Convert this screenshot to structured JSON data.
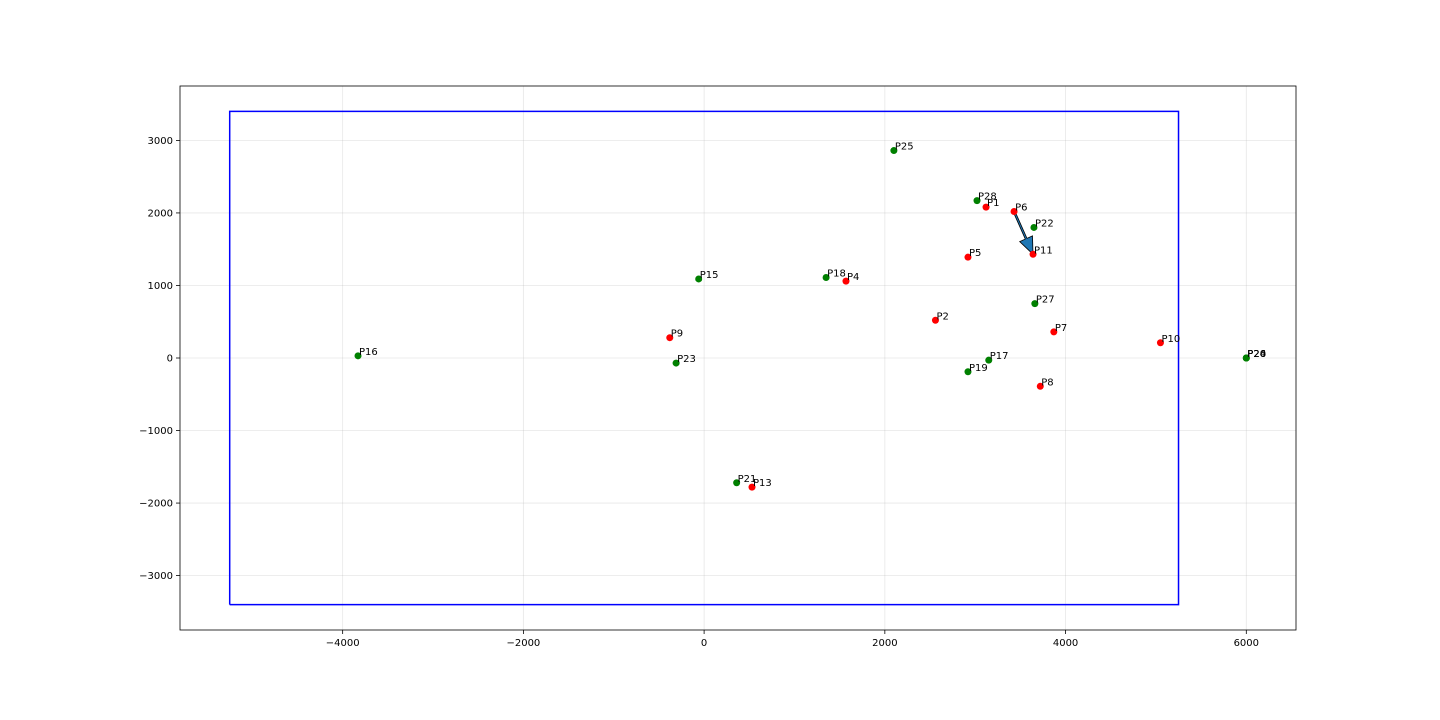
{
  "chart_data": {
    "type": "scatter",
    "title": "",
    "xlabel": "",
    "ylabel": "",
    "xlim": [
      -5800,
      6550
    ],
    "ylim": [
      -3750,
      3750
    ],
    "grid": true,
    "x_ticks": [
      -4000,
      -2000,
      0,
      2000,
      4000,
      6000
    ],
    "y_ticks": [
      -3000,
      -2000,
      -1000,
      0,
      1000,
      2000,
      3000
    ],
    "x_tick_labels": [
      "−4000",
      "−2000",
      "0",
      "2000",
      "4000",
      "6000"
    ],
    "y_tick_labels": [
      "−3000",
      "−2000",
      "−1000",
      "0",
      "1000",
      "2000",
      "3000"
    ],
    "boundary": {
      "x": [
        -5250,
        5250,
        5250,
        -5250,
        -5250
      ],
      "y": [
        -3400,
        -3400,
        3400,
        3400,
        -3400
      ],
      "color": "#0000ff"
    },
    "arrow": {
      "from": [
        3430,
        2020
      ],
      "to": [
        3640,
        1430
      ],
      "face_color": "#1f77b4"
    },
    "series": [
      {
        "color": "#ff0000",
        "points": [
          {
            "label": "P1",
            "x": 3120,
            "y": 2080
          },
          {
            "label": "P2",
            "x": 2560,
            "y": 520
          },
          {
            "label": "P4",
            "x": 1570,
            "y": 1060
          },
          {
            "label": "P5",
            "x": 2920,
            "y": 1390
          },
          {
            "label": "P6",
            "x": 3430,
            "y": 2020
          },
          {
            "label": "P7",
            "x": 3870,
            "y": 360
          },
          {
            "label": "P8",
            "x": 3720,
            "y": -390
          },
          {
            "label": "P9",
            "x": -380,
            "y": 280
          },
          {
            "label": "P10",
            "x": 5050,
            "y": 210
          },
          {
            "label": "P11",
            "x": 3640,
            "y": 1430
          },
          {
            "label": "P13",
            "x": 530,
            "y": -1780
          }
        ]
      },
      {
        "color": "#008000",
        "points": [
          {
            "label": "P15",
            "x": -60,
            "y": 1090
          },
          {
            "label": "P16",
            "x": -3830,
            "y": 30
          },
          {
            "label": "P17",
            "x": 3150,
            "y": -30
          },
          {
            "label": "P18",
            "x": 1350,
            "y": 1110
          },
          {
            "label": "P19",
            "x": 2920,
            "y": -190
          },
          {
            "label": "P20",
            "x": 6000,
            "y": 0
          },
          {
            "label": "P21",
            "x": 360,
            "y": -1720
          },
          {
            "label": "P22",
            "x": 3650,
            "y": 1800
          },
          {
            "label": "P23",
            "x": -310,
            "y": -70
          },
          {
            "label": "P24",
            "x": 6000,
            "y": 0
          },
          {
            "label": "P25",
            "x": 2100,
            "y": 2860
          },
          {
            "label": "P26",
            "x": 6000,
            "y": 0
          },
          {
            "label": "P27",
            "x": 3660,
            "y": 750
          },
          {
            "label": "P28",
            "x": 3020,
            "y": 2170
          }
        ]
      }
    ]
  }
}
